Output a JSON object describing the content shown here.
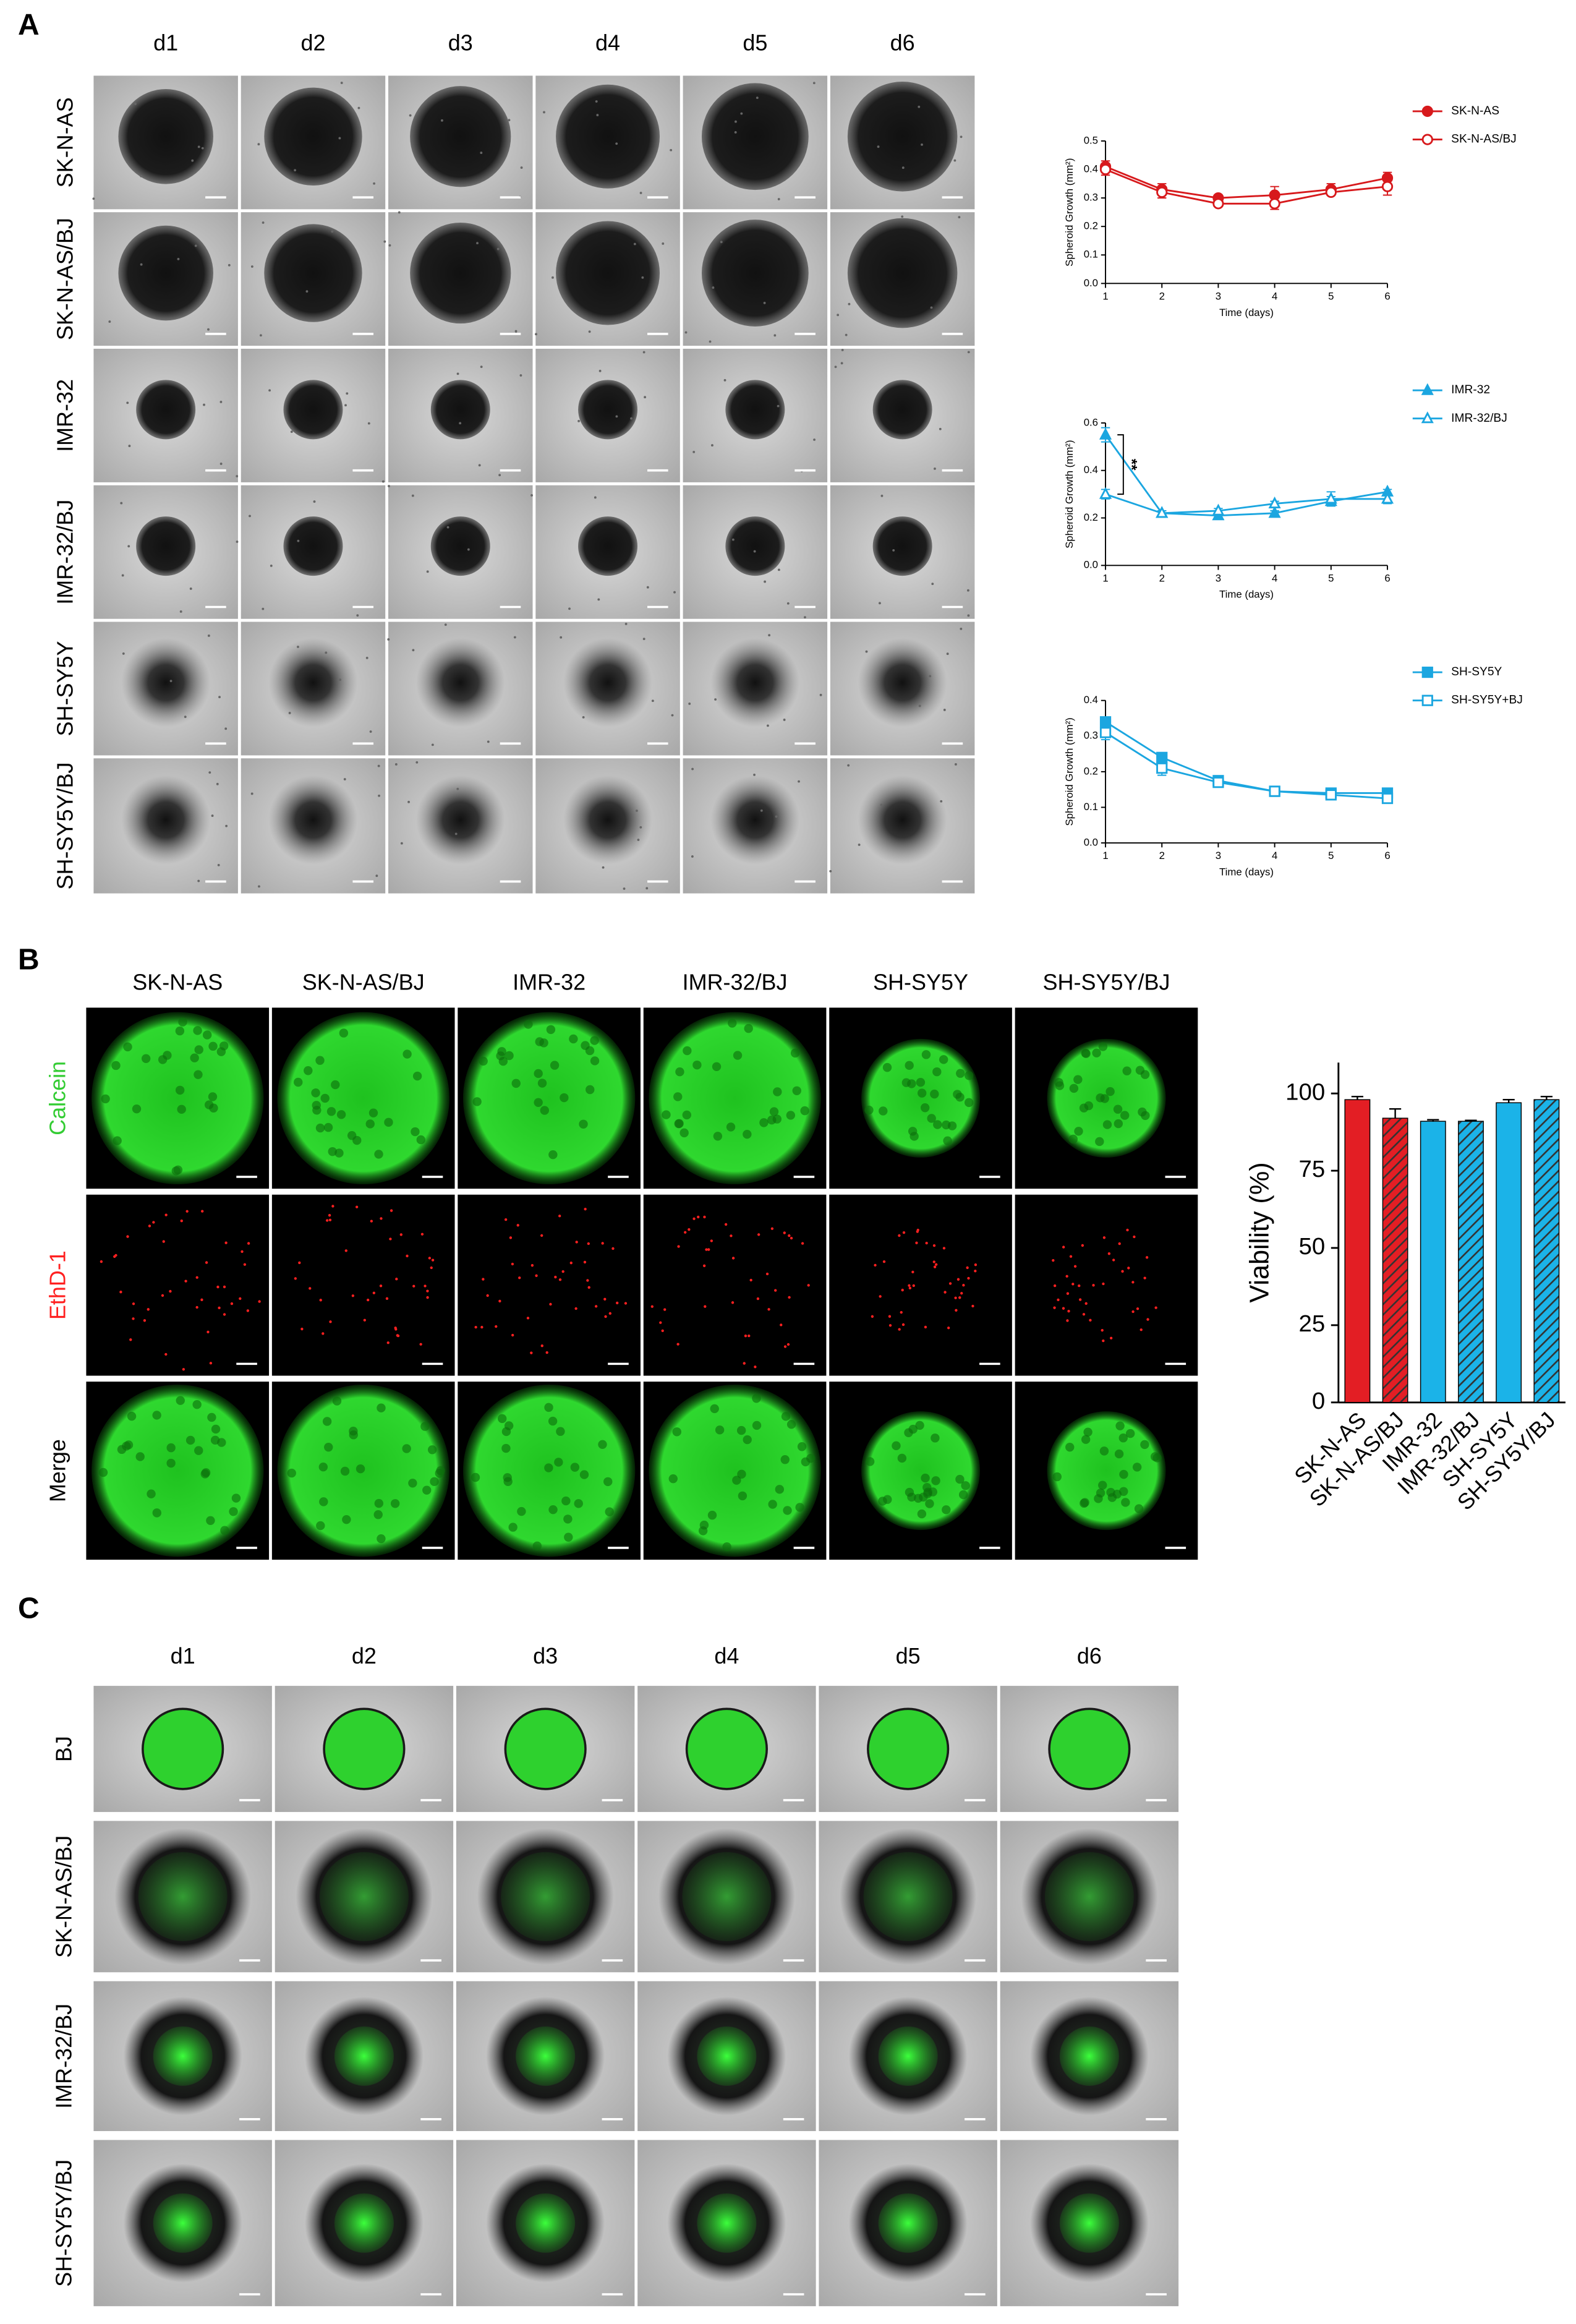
{
  "figure": {
    "panel_a": {
      "label": "A",
      "columns": [
        "d1",
        "d2",
        "d3",
        "d4",
        "d5",
        "d6"
      ],
      "rows": [
        "SK-N-AS",
        "SK-N-AS/BJ",
        "IMR-32",
        "IMR-32/BJ",
        "SH-SY5Y",
        "SH-SY5Y/BJ"
      ]
    },
    "panel_b": {
      "label": "B",
      "columns": [
        "SK-N-AS",
        "SK-N-AS/BJ",
        "IMR-32",
        "IMR-32/BJ",
        "SH-SY5Y",
        "SH-SY5Y/BJ"
      ],
      "rows": [
        "Calcein",
        "EthD-1",
        "Merge"
      ]
    },
    "panel_c": {
      "label": "C",
      "columns": [
        "d1",
        "d2",
        "d3",
        "d4",
        "d5",
        "d6"
      ],
      "rows": [
        "BJ",
        "SK-N-AS/BJ",
        "IMR-32/BJ",
        "SH-SY5Y/BJ"
      ]
    }
  },
  "chart_data": [
    {
      "type": "line",
      "x": [
        1,
        2,
        3,
        4,
        5,
        6
      ],
      "xlim": [
        1,
        6
      ],
      "xticks": [
        1,
        2,
        3,
        4,
        5,
        6
      ],
      "ylim": [
        0,
        0.5
      ],
      "yticks": [
        {
          "value": 0,
          "label": "0.0"
        },
        0.1,
        0.2,
        0.3,
        0.4,
        0.5
      ],
      "x_label": "Time (days)",
      "y_label": "Spheroid Growth (mm²)",
      "series": [
        {
          "name": "SK-N-AS",
          "color": "#d7191c",
          "marker": "circle",
          "filled": true,
          "values": [
            0.41,
            0.33,
            0.3,
            0.31,
            0.33,
            0.37
          ],
          "errors": [
            0.02,
            0.02,
            0.01,
            0.03,
            0.02,
            0.02
          ]
        },
        {
          "name": "SK-N-AS/BJ",
          "color": "#d7191c",
          "marker": "circle",
          "filled": false,
          "values": [
            0.4,
            0.32,
            0.28,
            0.28,
            0.32,
            0.34
          ],
          "errors": [
            0.02,
            0.02,
            0.01,
            0.02,
            0.01,
            0.03
          ]
        }
      ]
    },
    {
      "type": "line",
      "x": [
        1,
        2,
        3,
        4,
        5,
        6
      ],
      "xlim": [
        1,
        6
      ],
      "xticks": [
        1,
        2,
        3,
        4,
        5,
        6
      ],
      "ylim": [
        0,
        0.6
      ],
      "yticks": [
        {
          "value": 0,
          "label": "0.0"
        },
        0.2,
        0.4,
        0.6
      ],
      "x_label": "Time (days)",
      "y_label": "Spheroid Growth (mm²)",
      "annotation": "**",
      "series": [
        {
          "name": "IMR-32",
          "color": "#1ba6e0",
          "marker": "triangle",
          "filled": true,
          "values": [
            0.55,
            0.22,
            0.21,
            0.22,
            0.27,
            0.31
          ],
          "errors": [
            0.03,
            0.01,
            0.01,
            0.01,
            0.02,
            0.01
          ]
        },
        {
          "name": "IMR-32/BJ",
          "color": "#1ba6e0",
          "marker": "triangle",
          "filled": false,
          "values": [
            0.3,
            0.22,
            0.23,
            0.26,
            0.28,
            0.28
          ],
          "errors": [
            0.02,
            0.01,
            0.01,
            0.01,
            0.03,
            0.02
          ]
        }
      ]
    },
    {
      "type": "line",
      "x": [
        1,
        2,
        3,
        4,
        5,
        6
      ],
      "xlim": [
        1,
        6
      ],
      "xticks": [
        1,
        2,
        3,
        4,
        5,
        6
      ],
      "ylim": [
        0,
        0.4
      ],
      "yticks": [
        {
          "value": 0,
          "label": "0.0"
        },
        0.1,
        0.2,
        0.3,
        0.4
      ],
      "x_label": "Time (days)",
      "y_label": "Spheroid Growth (mm²)",
      "series": [
        {
          "name": "SH-SY5Y",
          "color": "#1ba6e0",
          "marker": "square",
          "filled": true,
          "values": [
            0.34,
            0.24,
            0.175,
            0.145,
            0.14,
            0.14
          ],
          "errors": [
            0.01,
            0.01,
            0.005,
            0.005,
            0.005,
            0.005
          ]
        },
        {
          "name": "SH-SY5Y+BJ",
          "color": "#1ba6e0",
          "marker": "square",
          "filled": false,
          "values": [
            0.31,
            0.21,
            0.17,
            0.145,
            0.135,
            0.125
          ],
          "errors": [
            0.02,
            0.02,
            0.01,
            0.005,
            0.005,
            0.005
          ]
        }
      ]
    },
    {
      "type": "bar",
      "categories": [
        "SK-N-AS",
        "SK-N-AS/BJ",
        "IMR-32",
        "IMR-32/BJ",
        "SH-SY5Y",
        "SH-SY5Y/BJ"
      ],
      "values": [
        98,
        92,
        91,
        91,
        97,
        98
      ],
      "errors": [
        1,
        3,
        0.5,
        0.3,
        1,
        1
      ],
      "colors": [
        "#e31e24",
        "#e31e24",
        "#1bb3e8",
        "#1bb3e8",
        "#1bb3e8",
        "#1bb3e8"
      ],
      "hatched": [
        false,
        true,
        false,
        true,
        false,
        true
      ],
      "ylim": [
        0,
        110
      ],
      "yticks": [
        0,
        25,
        50,
        75,
        100
      ],
      "y_label": "Viability (%)"
    }
  ]
}
